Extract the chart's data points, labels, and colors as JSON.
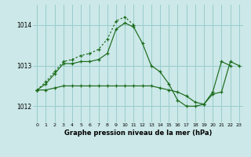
{
  "background_color": "#cce8e8",
  "grid_color": "#99cccc",
  "line_color": "#1a6b1a",
  "title": "Graphe pression niveau de la mer (hPa)",
  "xlim": [
    -0.5,
    23.5
  ],
  "ylim": [
    1011.6,
    1014.5
  ],
  "yticks": [
    1012,
    1013,
    1014
  ],
  "xticks": [
    0,
    1,
    2,
    3,
    4,
    5,
    6,
    7,
    8,
    9,
    10,
    11,
    12,
    13,
    14,
    15,
    16,
    17,
    18,
    19,
    20,
    21,
    22,
    23
  ],
  "series_solid1_x": [
    0,
    1,
    2,
    3,
    4,
    5,
    6,
    7,
    8,
    9,
    10,
    11,
    12,
    13,
    14,
    15,
    16,
    17,
    18,
    19,
    20,
    21,
    22,
    23
  ],
  "series_solid1_y": [
    1012.4,
    1012.55,
    1012.8,
    1013.05,
    1013.05,
    1013.1,
    1013.1,
    1013.15,
    1013.3,
    1013.9,
    1014.05,
    1013.95,
    1013.55,
    1013.0,
    1012.85,
    1012.55,
    1012.15,
    1012.0,
    1012.0,
    1012.05,
    1012.35,
    1013.1,
    1013.0,
    null
  ],
  "series_dotted_x": [
    0,
    1,
    2,
    3,
    4,
    5,
    6,
    7,
    8,
    9,
    10,
    11
  ],
  "series_dotted_y": [
    1012.4,
    1012.6,
    1012.85,
    1013.1,
    1013.15,
    1013.25,
    1013.3,
    1013.4,
    1013.65,
    1014.1,
    1014.2,
    1014.0
  ],
  "series_flat_x": [
    0,
    1,
    2,
    3,
    4,
    5,
    6,
    7,
    8,
    9,
    10,
    11,
    12,
    13,
    14,
    15,
    16,
    17,
    18,
    19,
    20,
    21,
    22,
    23
  ],
  "series_flat_y": [
    1012.4,
    1012.4,
    1012.45,
    1012.5,
    1012.5,
    1012.5,
    1012.5,
    1012.5,
    1012.5,
    1012.5,
    1012.5,
    1012.5,
    1012.5,
    1012.5,
    1012.45,
    1012.4,
    1012.35,
    1012.25,
    1012.1,
    1012.05,
    1012.3,
    1012.35,
    1013.1,
    1013.0
  ]
}
